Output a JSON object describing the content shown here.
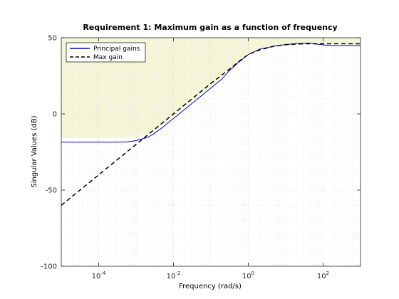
{
  "chart_data": {
    "type": "line",
    "title": "Requirement 1: Maximum gain as a function of frequency",
    "xlabel": "Frequency (rad/s)",
    "ylabel": "Singular Values (dB)",
    "x_scale": "log",
    "xlim": [
      1e-05,
      1000
    ],
    "ylim": [
      -100,
      50
    ],
    "x_ticks": [
      {
        "value": 0.0001,
        "base": "10",
        "exp": "-4"
      },
      {
        "value": 0.01,
        "base": "10",
        "exp": "-2"
      },
      {
        "value": 1,
        "base": "10",
        "exp": "0"
      },
      {
        "value": 100,
        "base": "10",
        "exp": "2"
      }
    ],
    "y_ticks": [
      {
        "value": 50,
        "label": "50"
      },
      {
        "value": 0,
        "label": "0"
      },
      {
        "value": -50,
        "label": "-50"
      },
      {
        "value": -100,
        "label": "-100"
      }
    ],
    "grid": true,
    "legend_position": "top-left",
    "series": [
      {
        "name": "Principal gains",
        "color": "#0000cc",
        "style": "solid",
        "x": [
          1e-05,
          3e-05,
          0.0001,
          0.0003,
          0.0006,
          0.001,
          0.002,
          0.003,
          0.005,
          0.01,
          0.02,
          0.05,
          0.1,
          0.2,
          0.3,
          0.5,
          1,
          2,
          5,
          10,
          20,
          40,
          100,
          200,
          500,
          1000
        ],
        "y": [
          -18.5,
          -18.5,
          -18.5,
          -18.5,
          -18.3,
          -17.5,
          -15.5,
          -13,
          -9,
          -3,
          3,
          11,
          17,
          23,
          28,
          33,
          39,
          42.5,
          44.5,
          45.5,
          46.2,
          46.5,
          45.3,
          44.8,
          44.8,
          44.8
        ]
      },
      {
        "name": "Max gain",
        "color": "#000000",
        "style": "dashed",
        "x": [
          1e-05,
          0.0001,
          0.001,
          0.01,
          0.1,
          0.3,
          0.6,
          1,
          2,
          5,
          10,
          30,
          100,
          1000
        ],
        "y": [
          -60,
          -40,
          -20,
          0,
          20,
          29,
          35,
          39,
          42,
          44.5,
          45.5,
          46,
          46,
          46
        ]
      }
    ],
    "shaded_region": {
      "color": "#f5f5d7",
      "x": [
        1e-05,
        0.0006,
        0.001,
        0.002,
        0.003,
        0.005,
        0.01,
        0.02,
        0.05,
        0.1,
        0.2,
        0.3,
        0.5,
        1,
        2,
        5,
        10,
        30,
        100,
        1000
      ],
      "lower": [
        -16,
        -16,
        -15.2,
        -13.2,
        -11,
        -7,
        -1,
        5,
        12.5,
        18.5,
        24,
        29,
        34,
        39.5,
        42.5,
        44.5,
        45.5,
        46,
        46,
        46
      ],
      "upper": 50
    }
  }
}
